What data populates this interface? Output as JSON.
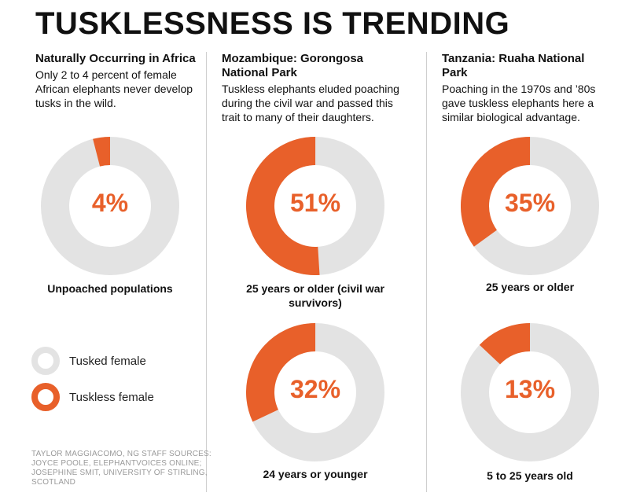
{
  "title": "TUSKLESSNESS IS TRENDING",
  "colors": {
    "tusked": "#e3e3e3",
    "tuskless": "#e8602a"
  },
  "columns": [
    {
      "heading": "Naturally Occurring in Africa",
      "description": "Only 2 to 4 percent of female African elephants never develop tusks in the wild."
    },
    {
      "heading": "Mozambique: Gorongosa National Park",
      "description": "Tuskless elephants eluded poaching during the civil war and passed this trait to many of their daughters."
    },
    {
      "heading": "Tanzania: Ruaha National Park",
      "description": "Poaching in the 1970s and ’80s gave tuskless elephants here a similar biological advantage."
    }
  ],
  "legend": {
    "tusked_label": "Tusked female",
    "tuskless_label": "Tuskless female"
  },
  "credits": "TAYLOR MAGGIACOMO, NG STAFF SOURCES: JOYCE POOLE, ELEPHANTVOICES ONLINE; JOSEPHINE SMIT, UNIVERSITY OF STIRLING, SCOTLAND",
  "chart_data": [
    {
      "type": "pie",
      "label": "4%",
      "caption": "Unpoached populations",
      "values": [
        {
          "name": "Tuskless female",
          "value": 4
        },
        {
          "name": "Tusked female",
          "value": 96
        }
      ]
    },
    {
      "type": "pie",
      "label": "51%",
      "caption": "25 years or older (civil war survivors)",
      "values": [
        {
          "name": "Tuskless female",
          "value": 51
        },
        {
          "name": "Tusked female",
          "value": 49
        }
      ]
    },
    {
      "type": "pie",
      "label": "35%",
      "caption": "25 years or older",
      "values": [
        {
          "name": "Tuskless female",
          "value": 35
        },
        {
          "name": "Tusked female",
          "value": 65
        }
      ]
    },
    {
      "type": "pie",
      "label": "32%",
      "caption": "24 years or younger",
      "values": [
        {
          "name": "Tuskless female",
          "value": 32
        },
        {
          "name": "Tusked female",
          "value": 68
        }
      ]
    },
    {
      "type": "pie",
      "label": "13%",
      "caption": "5 to 25 years old",
      "values": [
        {
          "name": "Tuskless female",
          "value": 13
        },
        {
          "name": "Tusked female",
          "value": 87
        }
      ]
    }
  ]
}
